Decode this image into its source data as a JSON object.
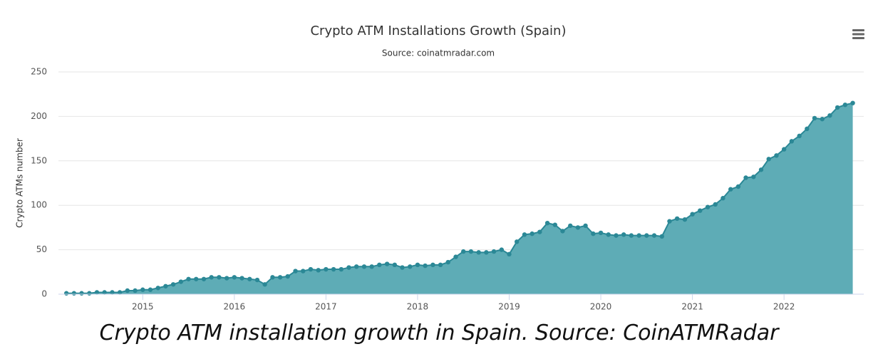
{
  "chart_data": {
    "type": "area",
    "title": "Crypto ATM Installations Growth (Spain)",
    "subtitle": "Source: coinatmradar.com",
    "y_label": "Crypto ATMs number",
    "caption": "Crypto ATM installation growth in Spain. Source: CoinATMRadar",
    "color": "#5eacb6",
    "line_color": "#2b8896",
    "grid": true,
    "x": [
      2014.167,
      2014.25,
      2014.333,
      2014.417,
      2014.5,
      2014.583,
      2014.667,
      2014.75,
      2014.833,
      2014.917,
      2015.0,
      2015.083,
      2015.167,
      2015.25,
      2015.333,
      2015.417,
      2015.5,
      2015.583,
      2015.667,
      2015.75,
      2015.833,
      2015.917,
      2016.0,
      2016.083,
      2016.167,
      2016.25,
      2016.333,
      2016.417,
      2016.5,
      2016.583,
      2016.667,
      2016.75,
      2016.833,
      2016.917,
      2017.0,
      2017.083,
      2017.167,
      2017.25,
      2017.333,
      2017.417,
      2017.5,
      2017.583,
      2017.667,
      2017.75,
      2017.833,
      2017.917,
      2018.0,
      2018.083,
      2018.167,
      2018.25,
      2018.333,
      2018.417,
      2018.5,
      2018.583,
      2018.667,
      2018.75,
      2018.833,
      2018.917,
      2019.0,
      2019.083,
      2019.167,
      2019.25,
      2019.333,
      2019.417,
      2019.5,
      2019.583,
      2019.667,
      2019.75,
      2019.833,
      2019.917,
      2020.0,
      2020.083,
      2020.167,
      2020.25,
      2020.333,
      2020.417,
      2020.5,
      2020.583,
      2020.667,
      2020.75,
      2020.833,
      2020.917,
      2021.0,
      2021.083,
      2021.167,
      2021.25,
      2021.333,
      2021.417,
      2021.5,
      2021.583,
      2021.667,
      2021.75,
      2021.833,
      2021.917,
      2022.0,
      2022.083,
      2022.167,
      2022.25,
      2022.333,
      2022.417,
      2022.5,
      2022.583,
      2022.667,
      2022.75
    ],
    "values": [
      1,
      1,
      1,
      1,
      2,
      2,
      2,
      2,
      4,
      4,
      5,
      5,
      7,
      9,
      11,
      14,
      17,
      17,
      17,
      19,
      19,
      18,
      19,
      18,
      17,
      16,
      11,
      19,
      19,
      20,
      26,
      26,
      28,
      27,
      28,
      28,
      28,
      30,
      31,
      31,
      31,
      33,
      34,
      33,
      30,
      31,
      33,
      32,
      33,
      33,
      36,
      42,
      48,
      48,
      47,
      47,
      48,
      50,
      45,
      59,
      67,
      68,
      70,
      80,
      78,
      71,
      77,
      75,
      77,
      68,
      69,
      67,
      66,
      67,
      66,
      66,
      66,
      66,
      65,
      82,
      85,
      84,
      90,
      94,
      98,
      101,
      108,
      118,
      121,
      131,
      132,
      140,
      152,
      156,
      163,
      172,
      178,
      186,
      198,
      197,
      201,
      210,
      213,
      215
    ],
    "xlim": [
      2014.08,
      2022.87
    ],
    "xticks": [
      2015,
      2016,
      2017,
      2018,
      2019,
      2020,
      2021,
      2022
    ],
    "ylim": [
      0,
      250
    ],
    "yticks": [
      0,
      50,
      100,
      150,
      200,
      250
    ]
  }
}
